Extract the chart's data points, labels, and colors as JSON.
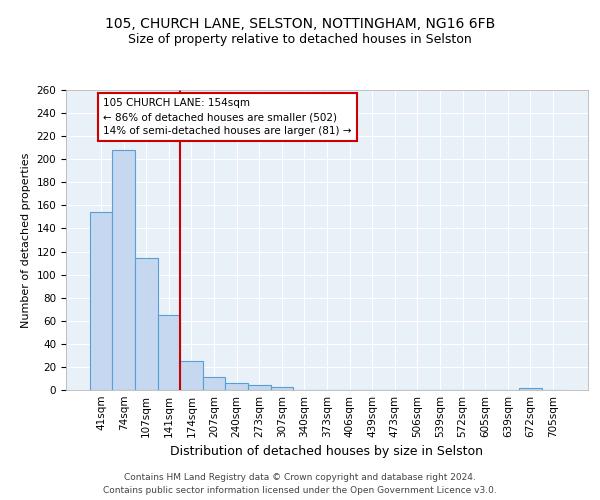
{
  "title_line1": "105, CHURCH LANE, SELSTON, NOTTINGHAM, NG16 6FB",
  "title_line2": "Size of property relative to detached houses in Selston",
  "xlabel": "Distribution of detached houses by size in Selston",
  "ylabel": "Number of detached properties",
  "categories": [
    "41sqm",
    "74sqm",
    "107sqm",
    "141sqm",
    "174sqm",
    "207sqm",
    "240sqm",
    "273sqm",
    "307sqm",
    "340sqm",
    "373sqm",
    "406sqm",
    "439sqm",
    "473sqm",
    "506sqm",
    "539sqm",
    "572sqm",
    "605sqm",
    "639sqm",
    "672sqm",
    "705sqm"
  ],
  "values": [
    154,
    208,
    114,
    65,
    25,
    11,
    6,
    4,
    3,
    0,
    0,
    0,
    0,
    0,
    0,
    0,
    0,
    0,
    0,
    2,
    0
  ],
  "bar_color": "#c5d8f0",
  "bar_edge_color": "#5a9fd4",
  "vline_x": 3.5,
  "vline_color": "#cc0000",
  "annotation_text": "105 CHURCH LANE: 154sqm\n← 86% of detached houses are smaller (502)\n14% of semi-detached houses are larger (81) →",
  "annotation_box_color": "#ffffff",
  "annotation_box_edge_color": "#cc0000",
  "footnote_line1": "Contains HM Land Registry data © Crown copyright and database right 2024.",
  "footnote_line2": "Contains public sector information licensed under the Open Government Licence v3.0.",
  "background_color": "#e8f0f8",
  "ylim": [
    0,
    260
  ],
  "title_fontsize": 10,
  "subtitle_fontsize": 9,
  "xlabel_fontsize": 9,
  "ylabel_fontsize": 8,
  "tick_fontsize": 7.5,
  "annotation_fontsize": 7.5,
  "footnote_fontsize": 6.5
}
